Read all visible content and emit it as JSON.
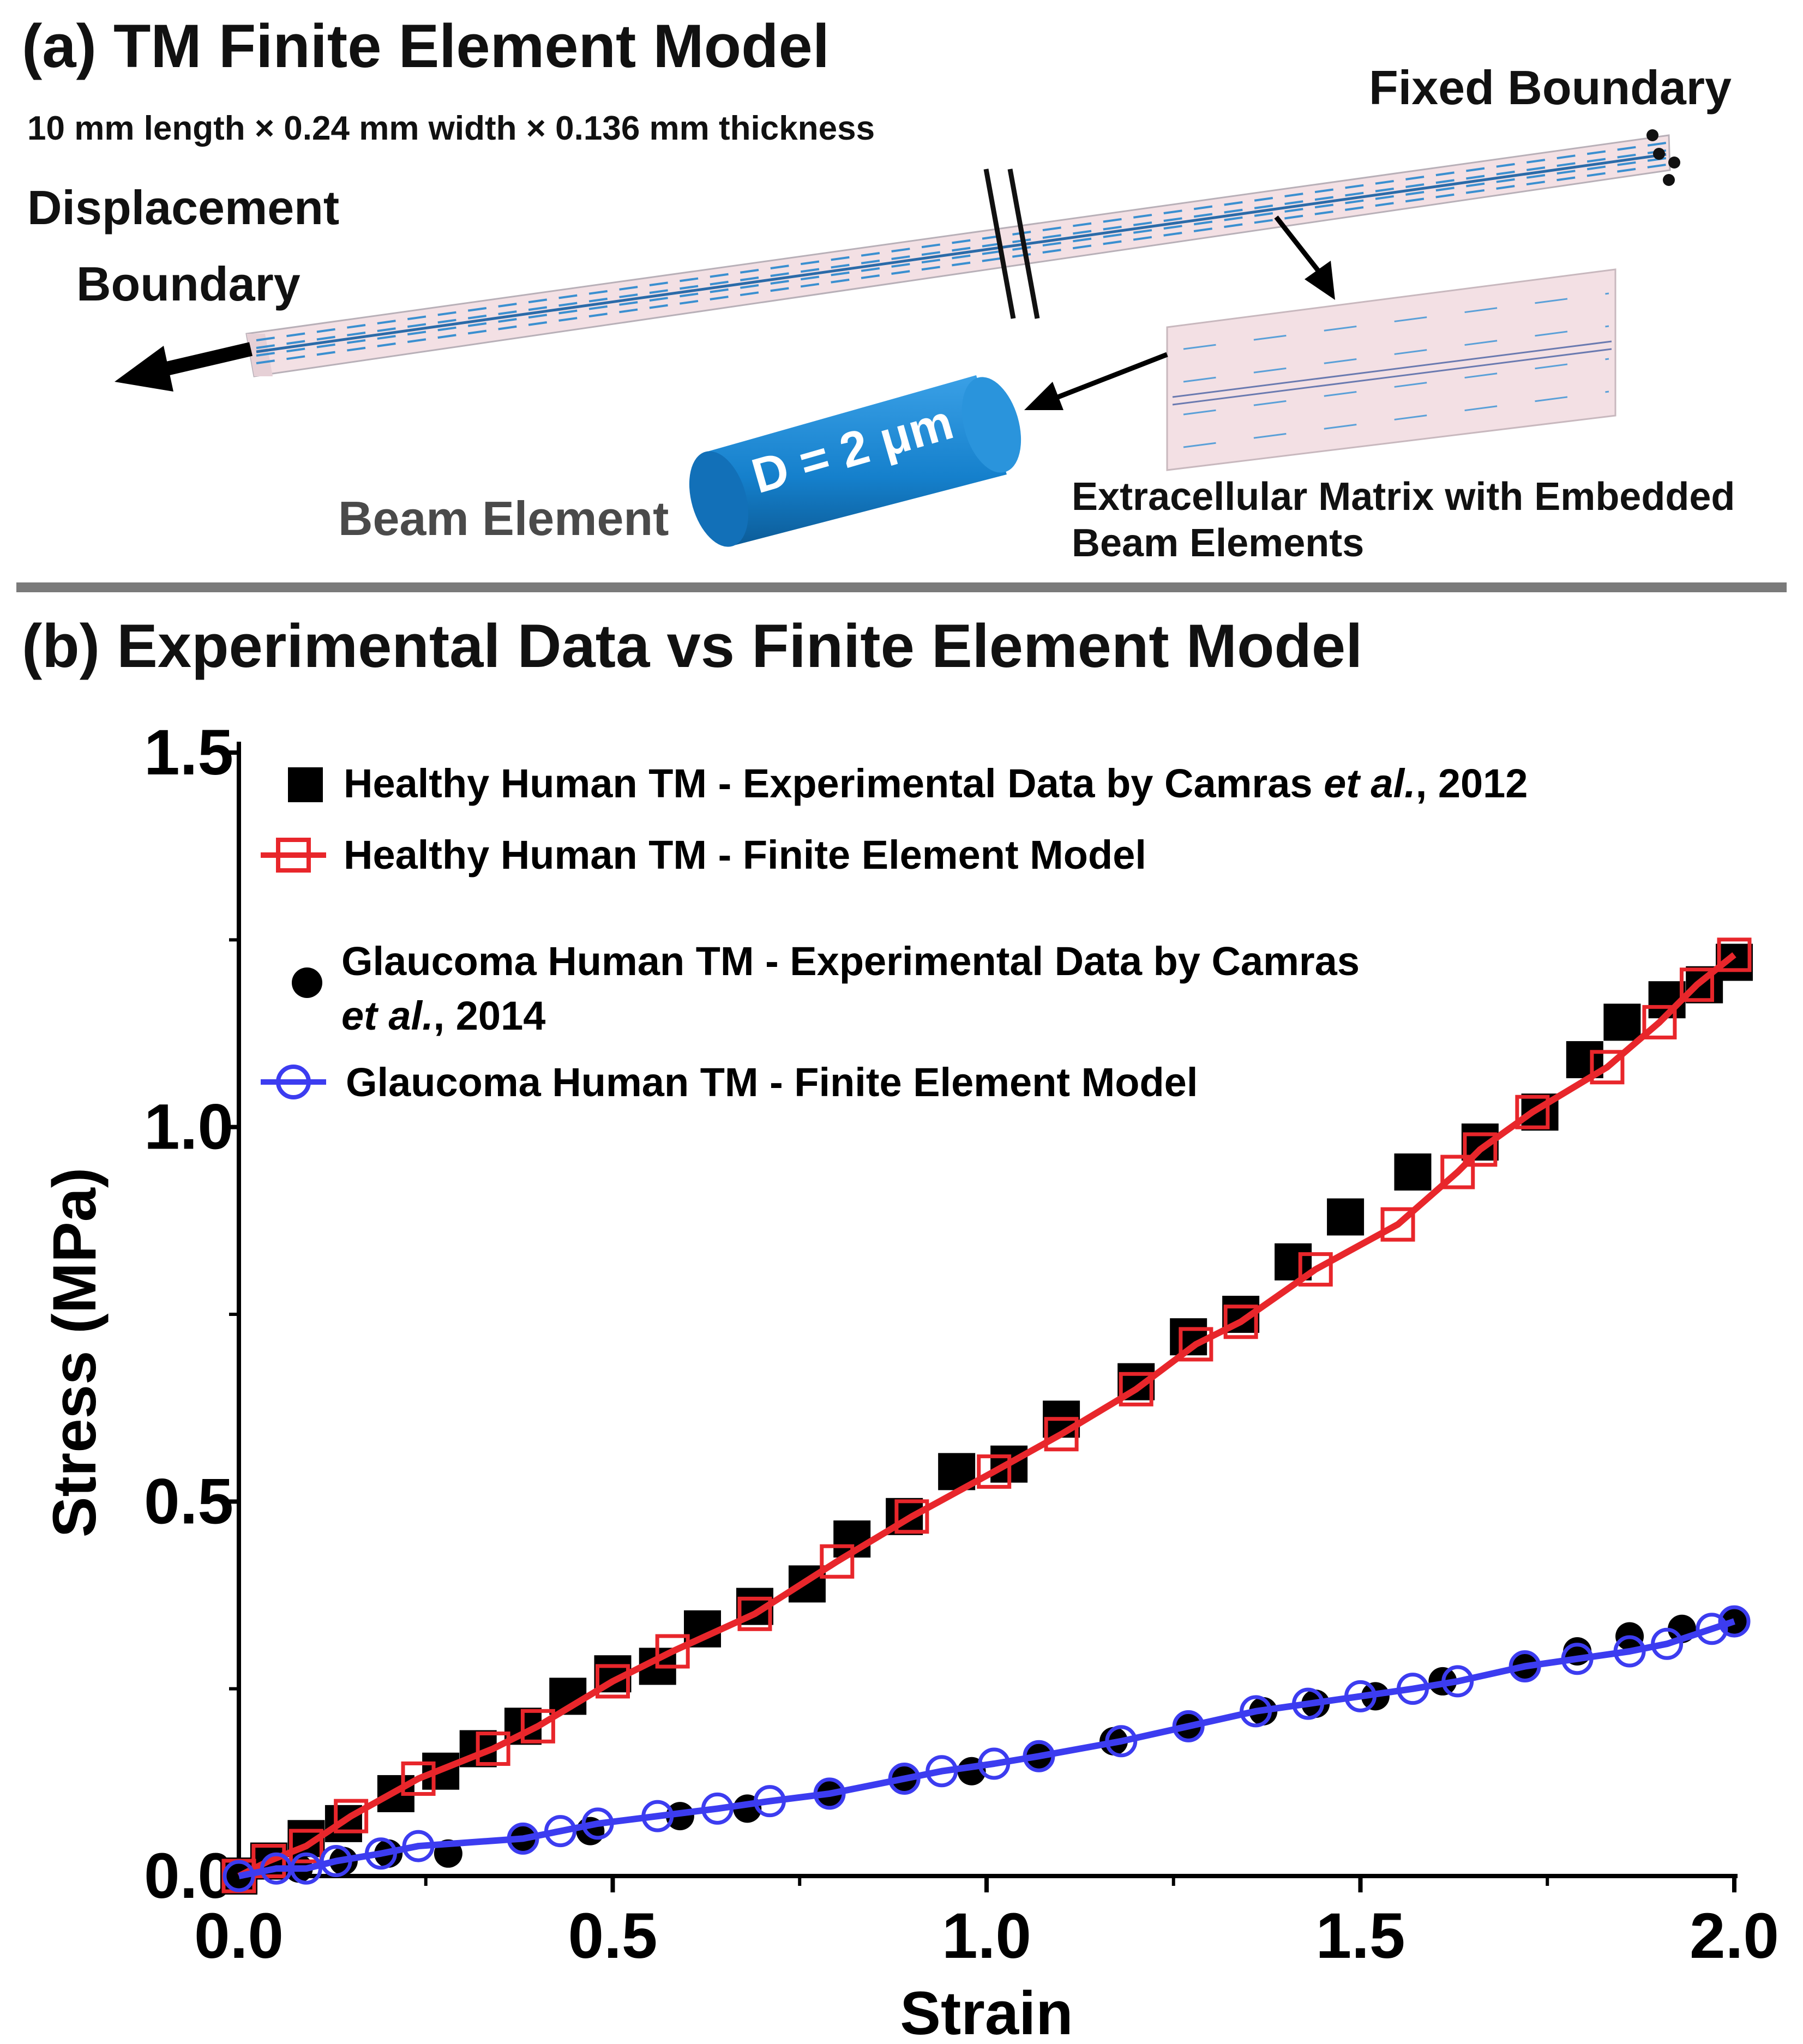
{
  "panel_a": {
    "title": "(a) TM Finite Element Model",
    "dimensions": "10 mm length × 0.24 mm width × 0.136 mm thickness",
    "fixed_boundary": "Fixed Boundary",
    "displacement_boundary_line1": "Displacement",
    "displacement_boundary_line2": "Boundary",
    "beam_diameter": "D = 2 μm",
    "beam_element": "Beam Element",
    "ecm_line1": "Extracellular Matrix with Embedded",
    "ecm_line2": "Beam Elements",
    "colors": {
      "tissue": "#f3e0e4",
      "fiber": "#3a8fd0",
      "beam": "#1580cc"
    }
  },
  "panel_b": {
    "title": "(b) Experimental Data vs Finite Element Model"
  },
  "chart_data": {
    "type": "scatter",
    "xlabel": "Strain",
    "ylabel": "Stress (MPa)",
    "xlim": [
      0,
      2.0
    ],
    "ylim": [
      0,
      1.5
    ],
    "xticks": [
      "0.0",
      "0.5",
      "1.0",
      "1.5",
      "2.0"
    ],
    "yticks": [
      "0.0",
      "0.5",
      "1.0",
      "1.5"
    ],
    "legend_position": "top-left",
    "series": [
      {
        "name": "Healthy Human TM - Experimental Data by Camras et al., 2012",
        "legend_prefix": "Healthy Human TM - Experimental Data by Camras ",
        "legend_italic": "et al.",
        "legend_suffix": ", 2012",
        "marker": "square-filled",
        "color": "#000000",
        "x": [
          0.0,
          0.04,
          0.09,
          0.14,
          0.21,
          0.27,
          0.32,
          0.38,
          0.44,
          0.5,
          0.56,
          0.62,
          0.69,
          0.76,
          0.82,
          0.89,
          0.96,
          1.03,
          1.1,
          1.2,
          1.27,
          1.34,
          1.41,
          1.48,
          1.57,
          1.66,
          1.74,
          1.8,
          1.85,
          1.91,
          1.96,
          2.0
        ],
        "y": [
          0.0,
          0.02,
          0.05,
          0.07,
          0.11,
          0.14,
          0.17,
          0.2,
          0.24,
          0.27,
          0.28,
          0.33,
          0.36,
          0.39,
          0.45,
          0.48,
          0.54,
          0.55,
          0.61,
          0.66,
          0.72,
          0.75,
          0.82,
          0.88,
          0.94,
          0.98,
          1.02,
          1.09,
          1.14,
          1.17,
          1.19,
          1.22
        ]
      },
      {
        "name": "Healthy Human TM - Finite Element Model",
        "marker": "square-open",
        "color": "#e8262b",
        "line": true,
        "x": [
          0.0,
          0.04,
          0.09,
          0.15,
          0.24,
          0.34,
          0.4,
          0.5,
          0.58,
          0.69,
          0.8,
          0.9,
          1.01,
          1.1,
          1.2,
          1.28,
          1.34,
          1.44,
          1.55,
          1.63,
          1.66,
          1.73,
          1.83,
          1.9,
          1.95,
          2.0
        ],
        "y": [
          0.0,
          0.02,
          0.04,
          0.08,
          0.13,
          0.17,
          0.2,
          0.26,
          0.3,
          0.35,
          0.42,
          0.48,
          0.54,
          0.59,
          0.65,
          0.71,
          0.74,
          0.81,
          0.87,
          0.94,
          0.97,
          1.02,
          1.08,
          1.14,
          1.19,
          1.23
        ]
      },
      {
        "name": "Glaucoma Human TM - Experimental Data by Camras et al., 2014",
        "legend_line1": "Glaucoma Human TM - Experimental Data by Camras",
        "legend_line2_italic": "et al.",
        "legend_line2_suffix": ", 2014",
        "marker": "circle-filled",
        "color": "#000000",
        "x": [
          0.0,
          0.08,
          0.14,
          0.2,
          0.28,
          0.38,
          0.47,
          0.59,
          0.68,
          0.79,
          0.89,
          0.98,
          1.07,
          1.17,
          1.27,
          1.37,
          1.44,
          1.52,
          1.61,
          1.72,
          1.79,
          1.86,
          1.93,
          2.0
        ],
        "y": [
          0.0,
          0.01,
          0.02,
          0.03,
          0.03,
          0.05,
          0.06,
          0.08,
          0.09,
          0.11,
          0.13,
          0.14,
          0.16,
          0.18,
          0.2,
          0.22,
          0.23,
          0.24,
          0.26,
          0.28,
          0.3,
          0.32,
          0.33,
          0.34
        ]
      },
      {
        "name": "Glaucoma Human TM - Finite Element Model",
        "marker": "circle-open",
        "color": "#3c3cf0",
        "line": true,
        "x": [
          0.0,
          0.05,
          0.09,
          0.13,
          0.19,
          0.24,
          0.38,
          0.43,
          0.48,
          0.56,
          0.64,
          0.71,
          0.79,
          0.89,
          0.94,
          1.01,
          1.07,
          1.18,
          1.27,
          1.36,
          1.43,
          1.5,
          1.57,
          1.63,
          1.72,
          1.79,
          1.86,
          1.91,
          1.97,
          2.0
        ],
        "y": [
          0.0,
          0.01,
          0.01,
          0.02,
          0.03,
          0.04,
          0.05,
          0.06,
          0.07,
          0.08,
          0.09,
          0.1,
          0.11,
          0.13,
          0.14,
          0.15,
          0.16,
          0.18,
          0.2,
          0.22,
          0.23,
          0.24,
          0.25,
          0.26,
          0.28,
          0.29,
          0.3,
          0.31,
          0.33,
          0.34
        ]
      }
    ]
  }
}
